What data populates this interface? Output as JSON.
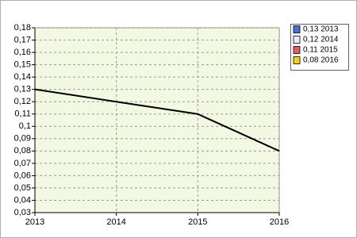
{
  "chart_data": {
    "type": "line",
    "x": [
      2013,
      2014,
      2015,
      2016
    ],
    "series": [
      {
        "color": "#000000",
        "values": [
          0.13,
          0.12,
          0.11,
          0.08
        ]
      }
    ],
    "xlim": [
      2013,
      2016
    ],
    "xticks": [
      2013,
      2014,
      2015,
      2016
    ],
    "ylim": [
      0.03,
      0.18
    ],
    "yticks": [
      {
        "value": 0.03,
        "label": "0,03"
      },
      {
        "value": 0.04,
        "label": "0,04"
      },
      {
        "value": 0.05,
        "label": "0,05"
      },
      {
        "value": 0.06,
        "label": "0,06"
      },
      {
        "value": 0.07,
        "label": "0,07"
      },
      {
        "value": 0.08,
        "label": "0,08"
      },
      {
        "value": 0.09,
        "label": "0,09"
      },
      {
        "value": 0.1,
        "label": "0,1"
      },
      {
        "value": 0.11,
        "label": "0,11"
      },
      {
        "value": 0.12,
        "label": "0,12"
      },
      {
        "value": 0.13,
        "label": "0,13"
      },
      {
        "value": 0.14,
        "label": "0,14"
      },
      {
        "value": 0.15,
        "label": "0,15"
      },
      {
        "value": 0.16,
        "label": "0,16"
      },
      {
        "value": 0.17,
        "label": "0,17"
      },
      {
        "value": 0.18,
        "label": "0,18"
      }
    ],
    "grid": true,
    "legend_position": "top-right",
    "legend": [
      {
        "label": "0,13 2013",
        "color": "#4a6fd0"
      },
      {
        "label": "0,12 2014",
        "color": "#e8eeff"
      },
      {
        "label": "0,11 2015",
        "color": "#e06060"
      },
      {
        "label": "0,08 2016",
        "color": "#f0d020"
      }
    ]
  }
}
